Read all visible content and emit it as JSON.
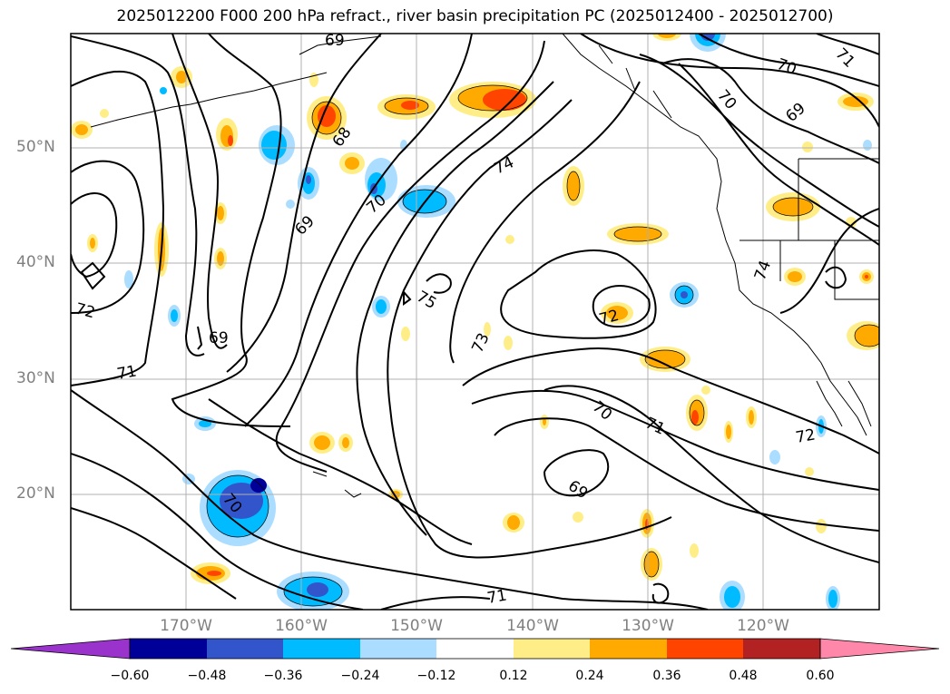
{
  "title": "2025012200 F000 200 hPa refract., river basin precipitation PC (2025012400 - 2025012700)",
  "lat_labels": [
    "50°N",
    "40°N",
    "30°N",
    "20°N"
  ],
  "lon_labels": [
    "170°W",
    "160°W",
    "150°W",
    "140°W",
    "130°W",
    "120°W"
  ],
  "contour_labels": [
    "69",
    "70",
    "71",
    "70",
    "69",
    "68",
    "74",
    "70",
    "69",
    "72",
    "75",
    "73",
    "72",
    "69",
    "71",
    "70",
    "71",
    "72",
    "69",
    "70",
    "71",
    "74"
  ],
  "colorbar": {
    "ticks": [
      "−0.60",
      "−0.48",
      "−0.36",
      "−0.24",
      "−0.12",
      "0.12",
      "0.24",
      "0.36",
      "0.48",
      "0.60"
    ],
    "colors": [
      "#9933cc",
      "#000099",
      "#3355cc",
      "#00bbff",
      "#aaddff",
      "#ffffff",
      "#ffee88",
      "#ffaa00",
      "#ff4400",
      "#b22222",
      "#ff88aa"
    ]
  }
}
